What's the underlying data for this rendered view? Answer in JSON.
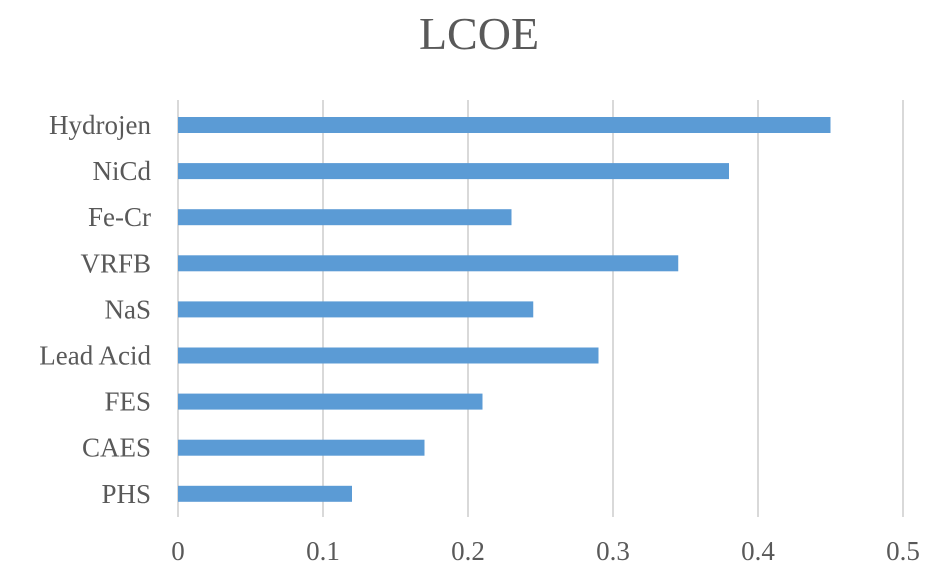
{
  "chart_data": {
    "type": "bar",
    "orientation": "horizontal",
    "title": "LCOE",
    "categories": [
      "PHS",
      "CAES",
      "FES",
      "Lead Acid",
      "NaS",
      "VRFB",
      "Fe-Cr",
      "NiCd",
      "Hydrojen"
    ],
    "values": [
      0.12,
      0.17,
      0.21,
      0.29,
      0.245,
      0.345,
      0.23,
      0.38,
      0.45
    ],
    "xlabel": "",
    "ylabel": "",
    "xlim": [
      0,
      0.5
    ],
    "xticks": [
      "0",
      "0.1",
      "0.2",
      "0.3",
      "0.4",
      "0.5"
    ],
    "grid": "vertical",
    "legend": "none",
    "colors": {
      "bar": "#5b9bd5",
      "grid": "#d9d9d9",
      "text": "#595959"
    }
  }
}
